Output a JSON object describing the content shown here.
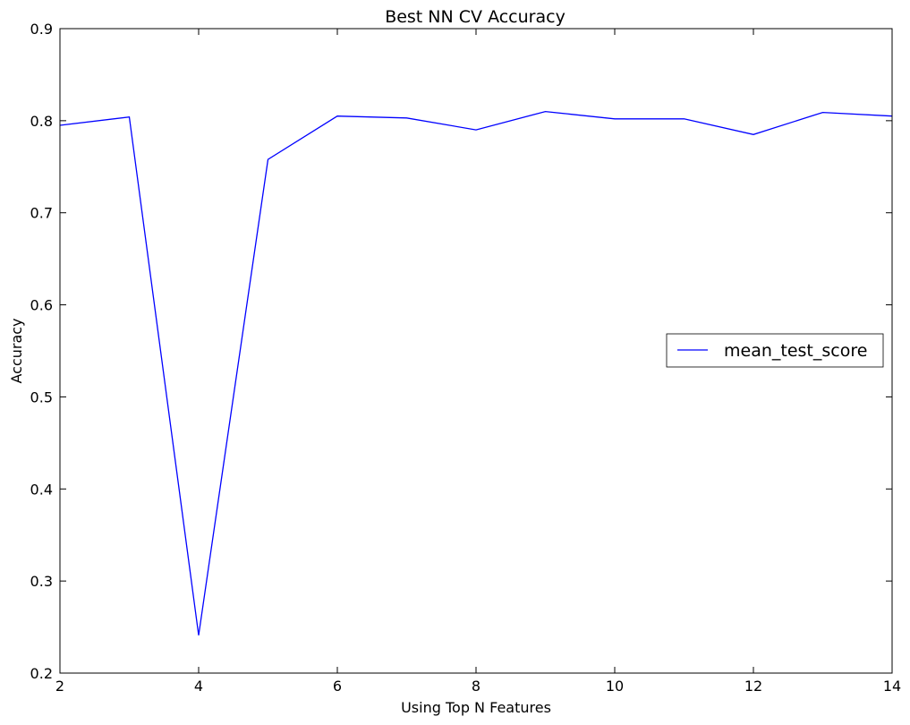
{
  "chart_data": {
    "type": "line",
    "title": "Best NN CV Accuracy",
    "xlabel": "Using Top N Features",
    "ylabel": "Accuracy",
    "xlim": [
      2,
      14
    ],
    "ylim": [
      0.2,
      0.9
    ],
    "xticks": [
      2,
      4,
      6,
      8,
      10,
      12,
      14
    ],
    "yticks": [
      0.2,
      0.3,
      0.4,
      0.5,
      0.6,
      0.7,
      0.8,
      0.9
    ],
    "grid": false,
    "legend_position": "center-right",
    "series": [
      {
        "name": "mean_test_score",
        "color": "#0000ff",
        "x": [
          2,
          3,
          4,
          5,
          6,
          7,
          8,
          9,
          10,
          11,
          12,
          13,
          14
        ],
        "y": [
          0.795,
          0.804,
          0.241,
          0.758,
          0.805,
          0.803,
          0.79,
          0.81,
          0.802,
          0.802,
          0.785,
          0.809,
          0.805
        ]
      }
    ]
  }
}
